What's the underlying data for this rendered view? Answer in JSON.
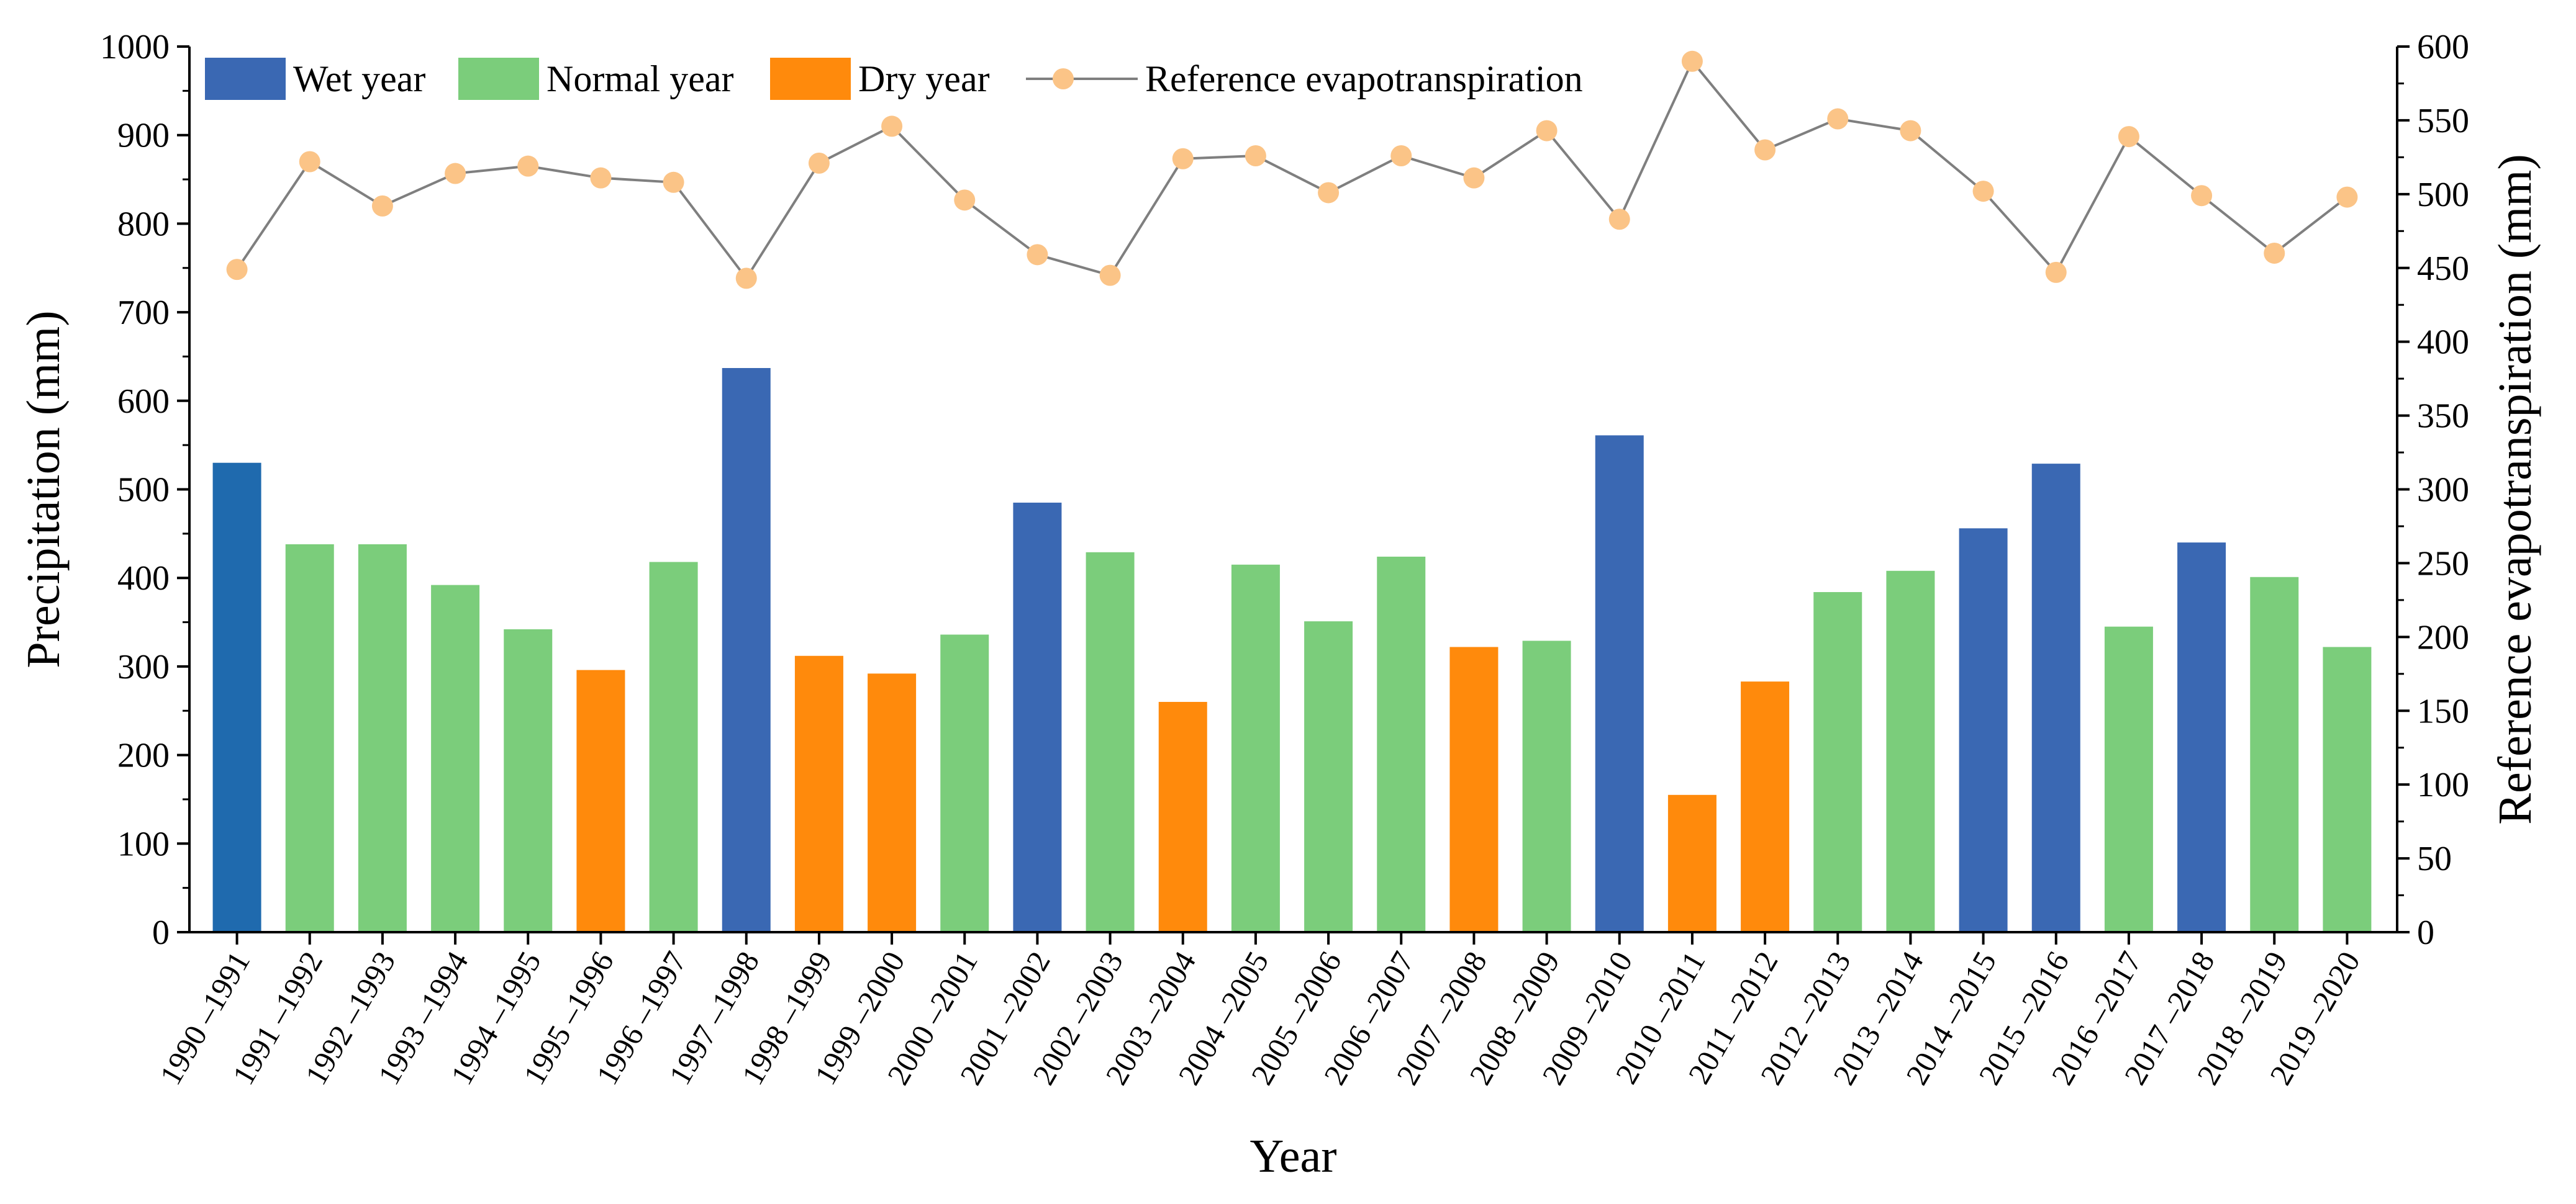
{
  "chart_data": {
    "type": "bar",
    "title": "",
    "xlabel": "Year",
    "ylabel": "Precipitation (mm)",
    "y2label": "Reference evapotranspiration (mm)",
    "ylim": [
      0,
      1000
    ],
    "y2lim": [
      0,
      600
    ],
    "yticks": [
      "0",
      "100",
      "200",
      "300",
      "400",
      "500",
      "600",
      "700",
      "800",
      "900",
      "1000"
    ],
    "y2ticks": [
      "0",
      "50",
      "100",
      "150",
      "200",
      "250",
      "300",
      "350",
      "400",
      "450",
      "500",
      "550",
      "600"
    ],
    "legend_placement": "top-left",
    "categories": [
      "1990 –1991",
      "1991 –1992",
      "1992 –1993",
      "1993 –1994",
      "1994 –1995",
      "1995 –1996",
      "1996 –1997",
      "1997 –1998",
      "1998 –1999",
      "1999 –2000",
      "2000 –2001",
      "2001 –2002",
      "2002 –2003",
      "2003 –2004",
      "2004 –2005",
      "2005 –2006",
      "2006 –2007",
      "2007 –2008",
      "2008 –2009",
      "2009 –2010",
      "2010 –2011",
      "2011 –2012",
      "2012 –2013",
      "2013 –2014",
      "2014 –2015",
      "2015 –2016",
      "2016 –2017",
      "2017 –2018",
      "2018 –2019",
      "2019 –2020"
    ],
    "series": [
      {
        "name": "Precipitation",
        "kind": "bar",
        "axis": "left",
        "values": [
          530,
          438,
          438,
          392,
          342,
          296,
          418,
          637,
          312,
          292,
          336,
          485,
          429,
          260,
          415,
          351,
          424,
          322,
          329,
          561,
          155,
          283,
          384,
          408,
          456,
          529,
          345,
          440,
          401,
          322
        ],
        "year_type": [
          "Wet",
          "Normal",
          "Normal",
          "Normal",
          "Normal",
          "Dry",
          "Normal",
          "Wet",
          "Dry",
          "Dry",
          "Normal",
          "Wet",
          "Normal",
          "Dry",
          "Normal",
          "Normal",
          "Normal",
          "Dry",
          "Normal",
          "Wet",
          "Dry",
          "Dry",
          "Normal",
          "Normal",
          "Wet",
          "Wet",
          "Normal",
          "Wet",
          "Normal",
          "Normal"
        ]
      },
      {
        "name": "Reference evapotranspiration",
        "kind": "line",
        "axis": "right",
        "values": [
          449,
          522,
          492,
          514,
          519,
          511,
          508,
          443,
          521,
          546,
          496,
          459,
          445,
          524,
          526,
          501,
          526,
          511,
          543,
          483,
          590,
          530,
          551,
          543,
          502,
          447,
          539,
          499,
          460,
          498
        ]
      }
    ],
    "legend": [
      {
        "label": "Wet year",
        "kind": "bar",
        "color_key": "Wet"
      },
      {
        "label": "Normal year",
        "kind": "bar",
        "color_key": "Normal"
      },
      {
        "label": "Dry year",
        "kind": "bar",
        "color_key": "Dry"
      },
      {
        "label": "Reference evapotranspiration",
        "kind": "line"
      }
    ],
    "colors": {
      "Wet": "#3a68b3",
      "Normal": "#7bcd7b",
      "Dry": "#ff8a0c",
      "first_bar": "#1f6aae",
      "line": "#7f7f7f",
      "marker": "#fbc487"
    }
  }
}
